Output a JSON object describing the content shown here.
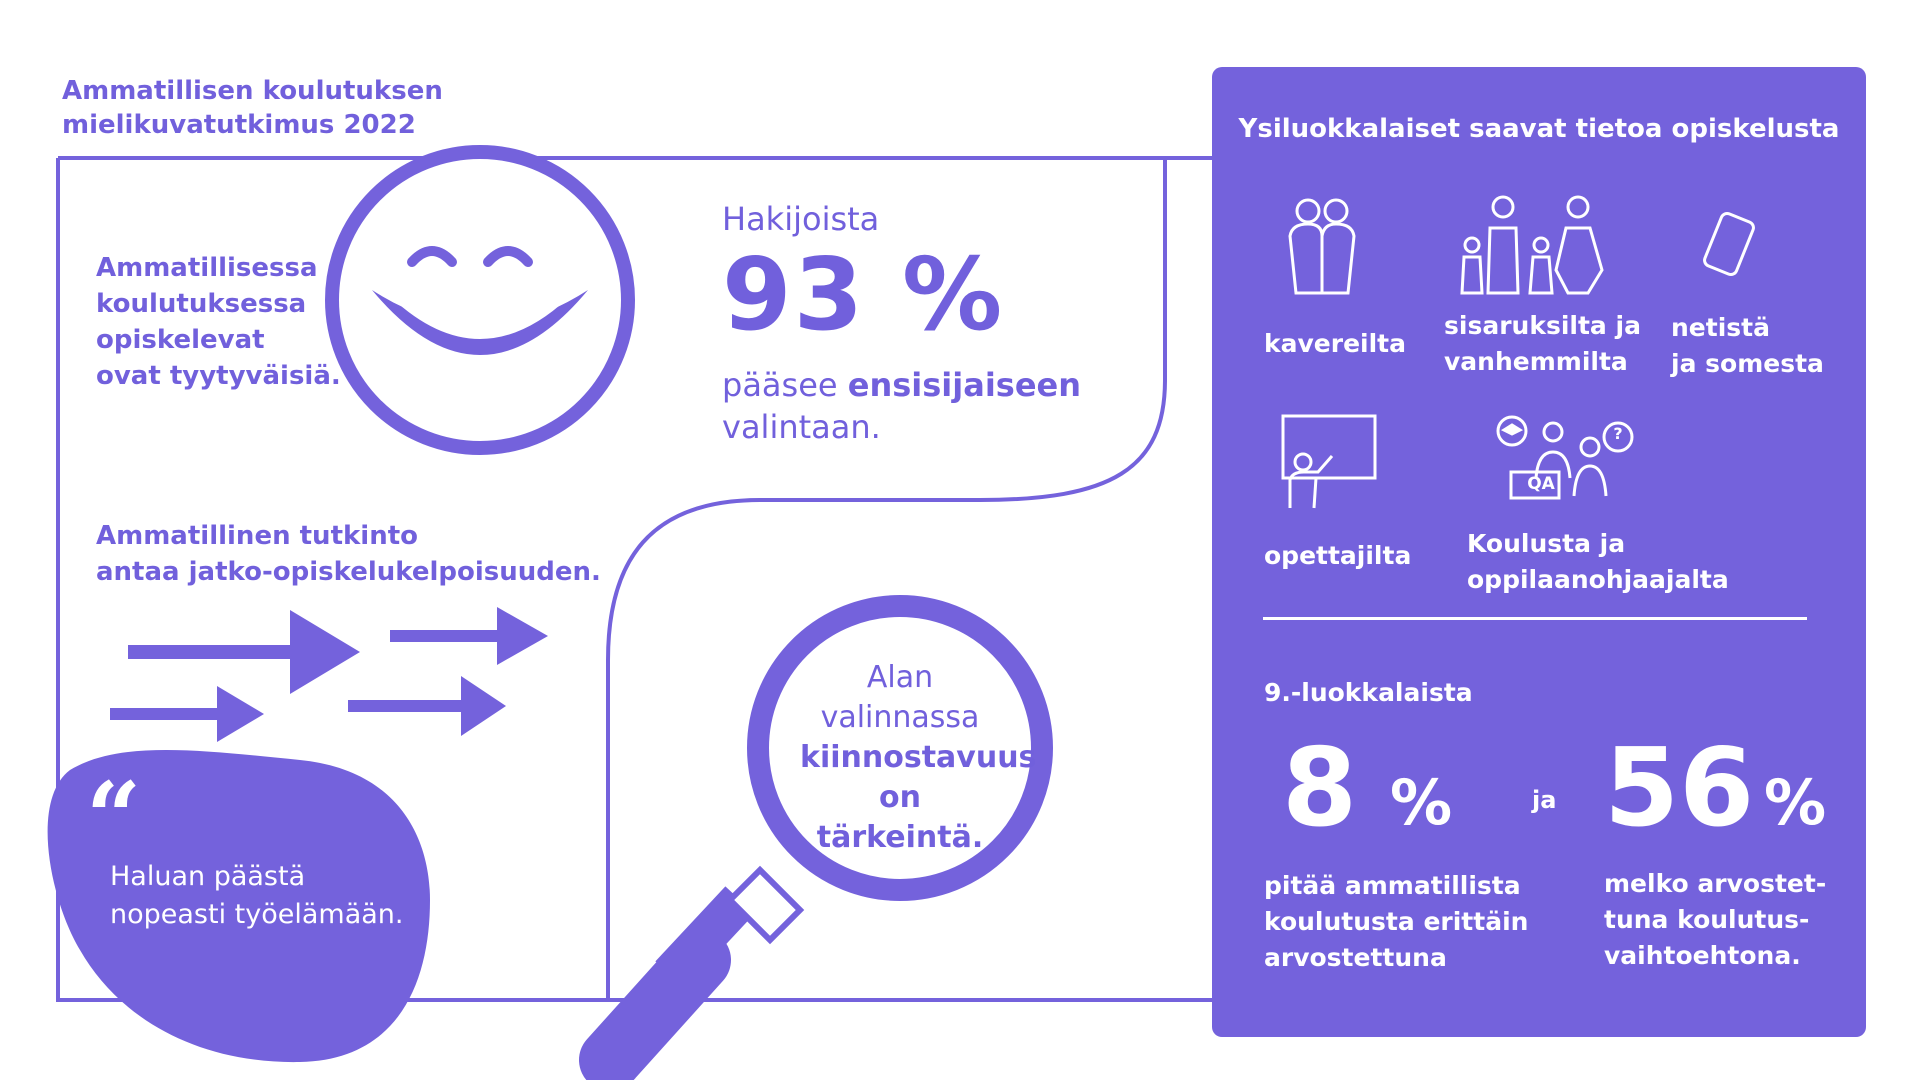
{
  "header": {
    "title_line1": "Ammatillisen koulutuksen",
    "title_line2": "mielikuvatutkimus 2022"
  },
  "satisfaction": {
    "line1": "Ammatillisessa",
    "line2": "koulutuksessa",
    "line3": "opiskelevat",
    "line4": "ovat tyytyväisiä."
  },
  "applicants": {
    "label": "Hakijoista",
    "percent": "93 %",
    "text_prefix": "pääsee ",
    "text_bold": "ensisijaiseen",
    "text_line2": "valintaan."
  },
  "degree": {
    "line1": "Ammatillinen tutkinto",
    "line2": "antaa jatko-opiskelukelpoisuuden."
  },
  "quote": {
    "mark": "“",
    "line1": "Haluan päästä",
    "line2": "nopeasti työelämään."
  },
  "magnifier": {
    "line1": "Alan",
    "line2": "valinnassa",
    "line3": "kiinnostavuus",
    "line4": "on tärkeintä."
  },
  "panel": {
    "title": "Ysiluokkalaiset saavat tietoa opiskelusta",
    "sources": [
      {
        "label_line1": "kavereilta",
        "label_line2": "",
        "icon": "friends-icon"
      },
      {
        "label_line1": "sisaruksilta ja",
        "label_line2": "vanhemmilta",
        "icon": "family-icon"
      },
      {
        "label_line1": "netistä",
        "label_line2": "ja somesta",
        "icon": "smartphone-icon"
      },
      {
        "label_line1": "opettajilta",
        "label_line2": "",
        "icon": "teacher-icon"
      },
      {
        "label_line1": "Koulusta ja",
        "label_line2": "oppilaanohjaajalta",
        "icon": "counselor-icon"
      }
    ],
    "qa_label": "QA",
    "question_mark": "?",
    "ninth_graders_label": "9.-luokkalaista",
    "stat1_value": "8",
    "stat1_unit": "%",
    "connector": "ja",
    "stat2_value": "56",
    "stat2_unit": "%",
    "stat1_text_line1": "pitää ammatillista",
    "stat1_text_line2": "koulutusta erittäin",
    "stat1_text_line3": "arvostettuna",
    "stat2_text_line1": "melko arvostet-",
    "stat2_text_line2": "tuna koulutus-",
    "stat2_text_line3": "vaihtoehtona."
  },
  "colors": {
    "accent": "#7462dc",
    "background": "#ffffff",
    "panel_text": "#ffffff"
  }
}
